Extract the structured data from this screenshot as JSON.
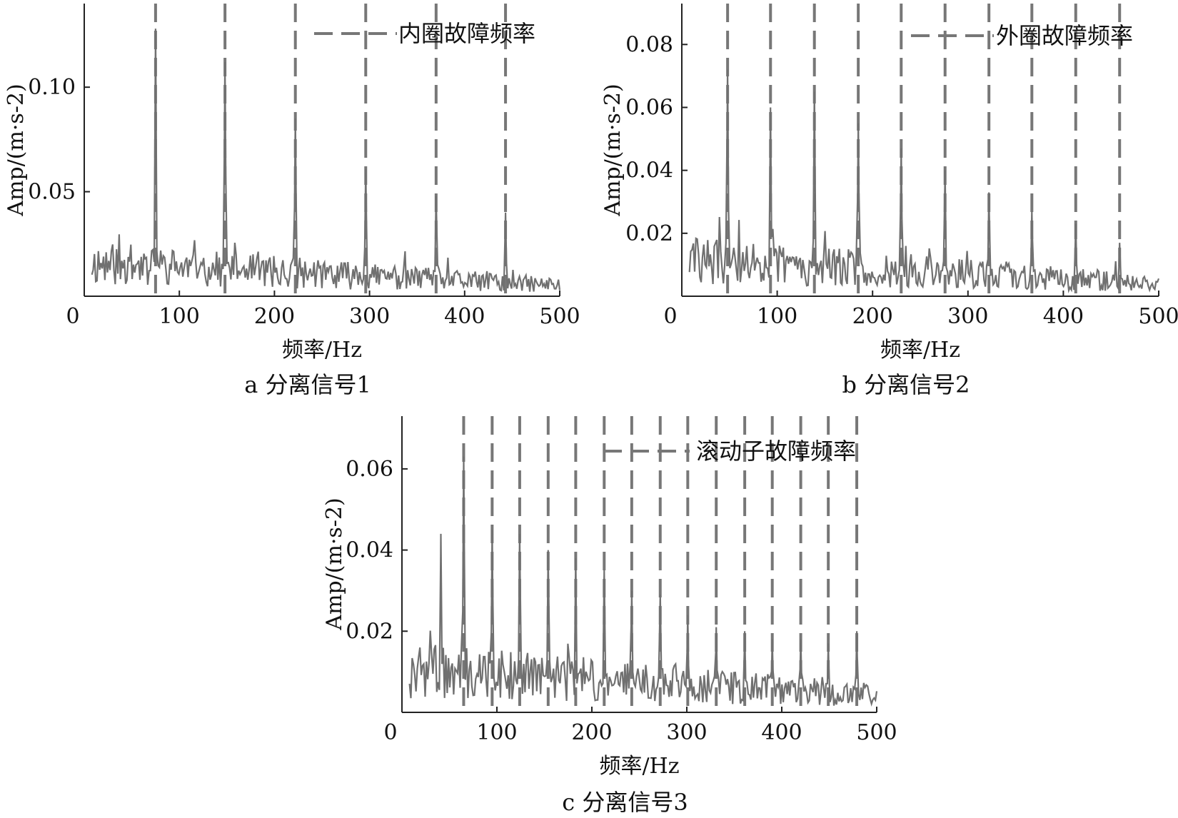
{
  "chart_data": [
    {
      "type": "line",
      "caption": "a 分离信号1",
      "xlabel": "频率/Hz",
      "ylabel": "Amp/(m·s-2)",
      "xlim": [
        0,
        500
      ],
      "ylim": [
        0,
        0.14
      ],
      "x_ticks": [
        0,
        100,
        200,
        300,
        400,
        500
      ],
      "y_ticks": [
        0.05,
        0.1
      ],
      "y_tick_labels": [
        "0.05",
        "0.10"
      ],
      "legend": "内圈故障频率",
      "legend_position": "top-right",
      "fault_frequencies": [
        75,
        148,
        222,
        296,
        370,
        443
      ],
      "peaks": [
        {
          "x": 75,
          "y": 0.128
        },
        {
          "x": 148,
          "y": 0.112
        },
        {
          "x": 222,
          "y": 0.085
        },
        {
          "x": 296,
          "y": 0.061
        },
        {
          "x": 370,
          "y": 0.048
        },
        {
          "x": 443,
          "y": 0.04
        }
      ],
      "noise_level_start": 0.015,
      "noise_level_end": 0.005,
      "noise_seed": 11
    },
    {
      "type": "line",
      "caption": "b 分离信号2",
      "xlabel": "频率/Hz",
      "ylabel": "Amp/(m·s-2)",
      "xlim": [
        0,
        500
      ],
      "ylim": [
        0,
        0.093
      ],
      "x_ticks": [
        0,
        100,
        200,
        300,
        400,
        500
      ],
      "y_ticks": [
        0.02,
        0.04,
        0.06,
        0.08
      ],
      "y_tick_labels": [
        "0.02",
        "0.04",
        "0.06",
        "0.08"
      ],
      "legend": "外圈故障频率",
      "legend_position": "top-right",
      "fault_frequencies": [
        48,
        93,
        139,
        185,
        230,
        276,
        322,
        367,
        413,
        459
      ],
      "peaks": [
        {
          "x": 48,
          "y": 0.072
        },
        {
          "x": 93,
          "y": 0.06
        },
        {
          "x": 139,
          "y": 0.065
        },
        {
          "x": 185,
          "y": 0.055
        },
        {
          "x": 230,
          "y": 0.047
        },
        {
          "x": 276,
          "y": 0.04
        },
        {
          "x": 322,
          "y": 0.033
        },
        {
          "x": 367,
          "y": 0.027
        },
        {
          "x": 413,
          "y": 0.023
        },
        {
          "x": 459,
          "y": 0.017
        }
      ],
      "noise_level_start": 0.011,
      "noise_level_end": 0.004,
      "noise_seed": 29
    },
    {
      "type": "line",
      "caption": "c 分离信号3",
      "xlabel": "频率/Hz",
      "ylabel": "Amp/(m·s-2)",
      "xlim": [
        0,
        500
      ],
      "ylim": [
        0,
        0.073
      ],
      "x_ticks": [
        0,
        100,
        200,
        300,
        400,
        500
      ],
      "y_ticks": [
        0.02,
        0.04,
        0.06
      ],
      "y_tick_labels": [
        "0.02",
        "0.04",
        "0.06"
      ],
      "legend": "滚动子故障频率",
      "legend_position": "top-right",
      "fault_frequencies": [
        65,
        95,
        124,
        154,
        183,
        213,
        242,
        272,
        301,
        331,
        361,
        390,
        420,
        449,
        479
      ],
      "peaks": [
        {
          "x": 41,
          "y": 0.044
        },
        {
          "x": 65,
          "y": 0.063
        },
        {
          "x": 95,
          "y": 0.045
        },
        {
          "x": 124,
          "y": 0.044
        },
        {
          "x": 154,
          "y": 0.04
        },
        {
          "x": 183,
          "y": 0.038
        },
        {
          "x": 213,
          "y": 0.035
        },
        {
          "x": 242,
          "y": 0.03
        },
        {
          "x": 272,
          "y": 0.029
        },
        {
          "x": 301,
          "y": 0.024
        },
        {
          "x": 331,
          "y": 0.021
        },
        {
          "x": 361,
          "y": 0.02
        },
        {
          "x": 390,
          "y": 0.018
        },
        {
          "x": 420,
          "y": 0.018
        },
        {
          "x": 449,
          "y": 0.017
        },
        {
          "x": 479,
          "y": 0.02
        }
      ],
      "noise_level_start": 0.01,
      "noise_level_end": 0.004,
      "noise_seed": 47
    }
  ],
  "colors": {
    "signal": "#707070",
    "fault_line": "#777777",
    "axis": "#222222"
  }
}
